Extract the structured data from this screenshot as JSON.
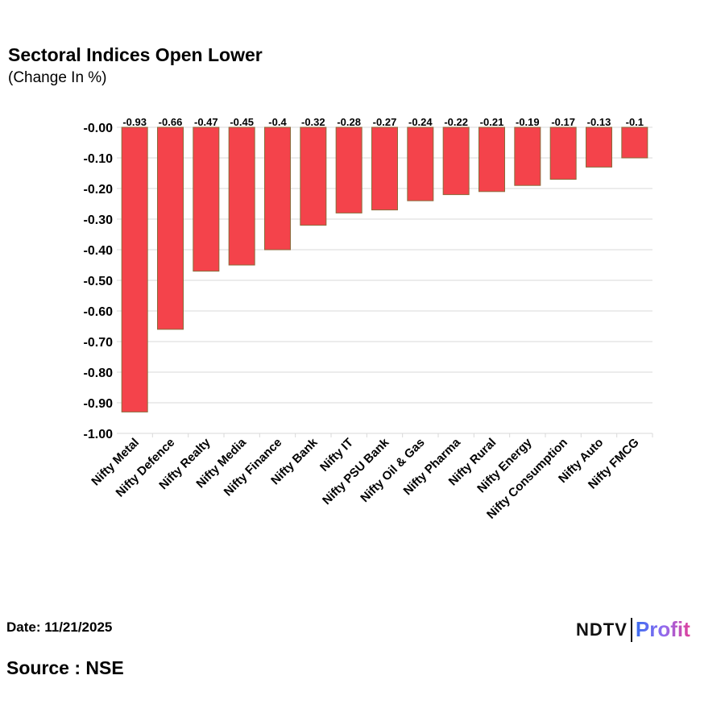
{
  "header": {
    "title": "Sectoral Indices Open Lower",
    "subtitle": "(Change In %)"
  },
  "footer": {
    "date": "Date: 11/21/2025",
    "source": "Source : NSE",
    "logo_text": "NDTV Profit"
  },
  "colors": {
    "bar": "#f4434b",
    "bar_border": "#8a6a3a",
    "grid": "#d9d9d9"
  },
  "chart_data": {
    "type": "bar",
    "title": "Sectoral Indices Open Lower",
    "subtitle": "(Change In %)",
    "categories": [
      "Nifty Metal",
      "Nifty Defence",
      "Nifty Realty",
      "Nifty Media",
      "Nifty Finance",
      "Nifty Bank",
      "Nifty IT",
      "Nifty PSU Bank",
      "Nifty Oil & Gas",
      "Nifty Pharma",
      "Nifty Rural",
      "Nifty Energy",
      "Nifty Consumption",
      "Nifty Auto",
      "Nifty FMCG"
    ],
    "values": [
      -0.93,
      -0.66,
      -0.47,
      -0.45,
      -0.4,
      -0.32,
      -0.28,
      -0.27,
      -0.24,
      -0.22,
      -0.21,
      -0.19,
      -0.17,
      -0.13,
      -0.1
    ],
    "data_labels": [
      "-0.93",
      "-0.66",
      "-0.47",
      "-0.45",
      "-0.4",
      "-0.32",
      "-0.28",
      "-0.27",
      "-0.24",
      "-0.22",
      "-0.21",
      "-0.19",
      "-0.17",
      "-0.13",
      "-0.1"
    ],
    "yticks": [
      "-0.00",
      "-0.10",
      "-0.20",
      "-0.30",
      "-0.40",
      "-0.50",
      "-0.60",
      "-0.70",
      "-0.80",
      "-0.90",
      "-1.00"
    ],
    "ylim": [
      -1.0,
      0
    ],
    "grid": true,
    "legend": "none"
  }
}
